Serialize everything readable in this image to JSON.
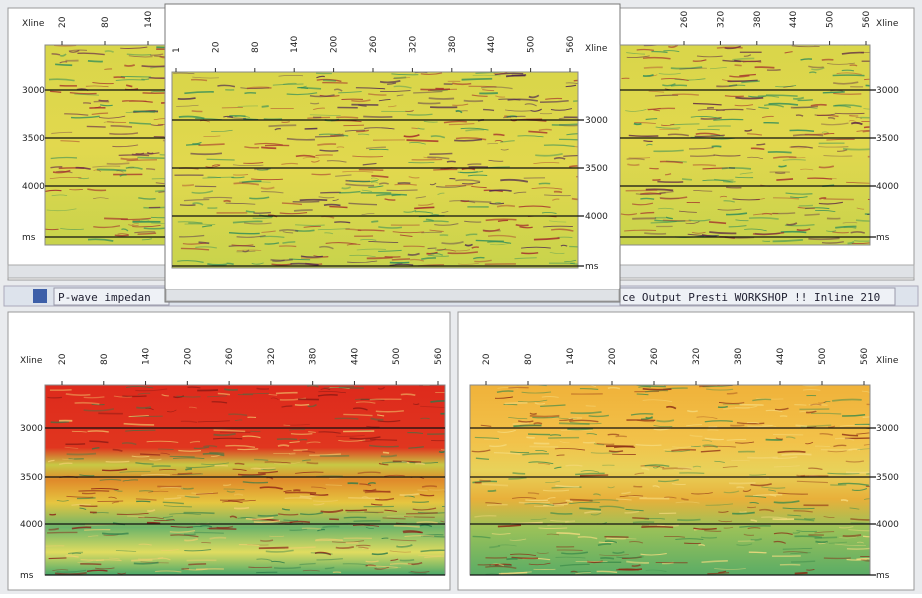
{
  "panels": [
    {
      "axis_label": "Xline",
      "xticks": [
        "20",
        "80",
        "140"
      ],
      "yticks": [
        "3000",
        "3500",
        "4000",
        "ms"
      ]
    },
    {
      "axis_label": "Xline",
      "xticks": [
        "260",
        "320",
        "380",
        "440",
        "500",
        "560"
      ],
      "yticks": [
        "3000",
        "3500",
        "4000",
        "ms"
      ]
    },
    {
      "axis_label": "Xline",
      "xticks": [
        "20",
        "80",
        "140",
        "200",
        "260",
        "320",
        "380",
        "440",
        "500",
        "560"
      ],
      "yticks": [
        "3000",
        "3500",
        "4000",
        "ms"
      ]
    },
    {
      "axis_label": "Xline",
      "xticks": [
        "20",
        "80",
        "140",
        "200",
        "260",
        "320",
        "380",
        "440",
        "500",
        "560"
      ],
      "yticks": [
        "3000",
        "3500",
        "4000",
        "ms"
      ]
    },
    {
      "axis_label": "Xline",
      "xticks": [
        "1",
        "20",
        "80",
        "140",
        "200",
        "260",
        "320",
        "380",
        "440",
        "500",
        "560"
      ],
      "yticks": [
        "3000",
        "3500",
        "4000",
        "ms"
      ]
    }
  ],
  "tabs": [
    "P-wave impedan",
    "ce Output Presti WORKSHOP !! Inline 210"
  ]
}
